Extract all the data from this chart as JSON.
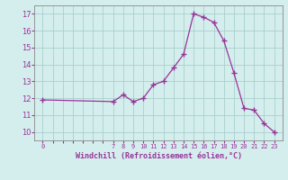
{
  "x": [
    0,
    7,
    8,
    9,
    10,
    11,
    12,
    13,
    14,
    15,
    16,
    17,
    18,
    19,
    20,
    21,
    22,
    23
  ],
  "y": [
    11.9,
    11.8,
    12.2,
    11.8,
    12.0,
    12.8,
    13.0,
    13.8,
    14.6,
    17.0,
    16.8,
    16.5,
    15.4,
    13.5,
    11.4,
    11.3,
    10.5,
    10.0
  ],
  "line_color": "#993399",
  "marker": "+",
  "bg_color": "#d4eeed",
  "grid_color": "#aad0cc",
  "xlabel": "Windchill (Refroidissement éolien,°C)",
  "xlabel_color": "#993399",
  "tick_color": "#993399",
  "yticks": [
    10,
    11,
    12,
    13,
    14,
    15,
    16,
    17
  ],
  "xtick_positions": [
    0,
    7,
    8,
    9,
    10,
    11,
    12,
    13,
    14,
    15,
    16,
    17,
    18,
    19,
    20,
    21,
    22,
    23
  ],
  "ylim": [
    9.5,
    17.5
  ],
  "xlim": [
    -0.8,
    23.8
  ]
}
